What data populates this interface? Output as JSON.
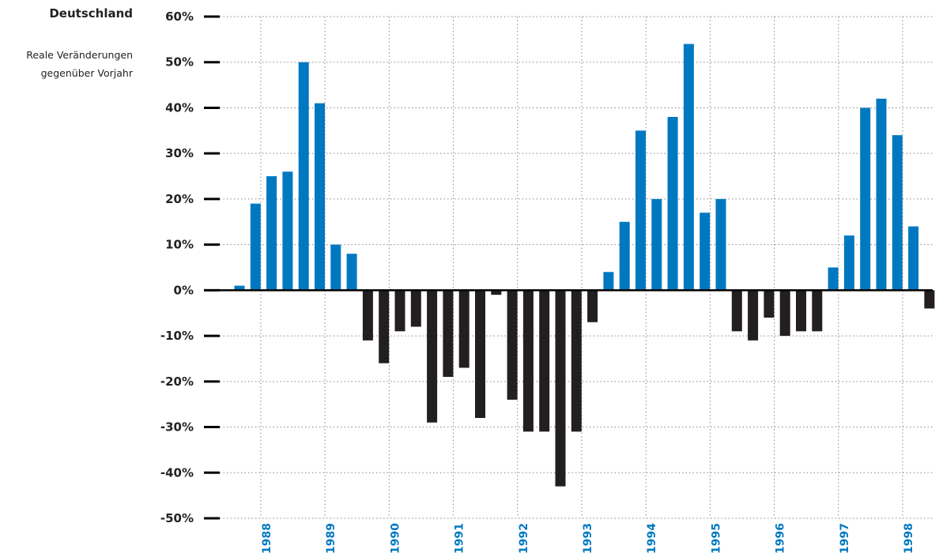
{
  "chart_data": {
    "type": "bar",
    "title": "Deutschland",
    "subtitle": [
      "Reale Veränderungen",
      "gegenüber Vorjahr"
    ],
    "ylabel": "",
    "xlabel": "",
    "ylim": [
      -50,
      60
    ],
    "y_ticks": [
      60,
      50,
      40,
      30,
      20,
      10,
      0,
      -10,
      -20,
      -30,
      -40,
      -50
    ],
    "y_tick_labels": [
      "60%",
      "50%",
      "40%",
      "30%",
      "20%",
      "10%",
      "0%",
      "-10%",
      "-20%",
      "-30%",
      "-40%",
      "-50%"
    ],
    "x_tick_labels": [
      "1988",
      "1989",
      "1990",
      "1991",
      "1992",
      "1993",
      "1994",
      "1995",
      "1996",
      "1997",
      "1998"
    ],
    "grid": true,
    "colors": {
      "positive": "#0078c1",
      "negative": "#231f20",
      "year_label": "#0078c1",
      "axis": "#000000",
      "grid": "#888888"
    },
    "values": [
      1,
      19,
      25,
      26,
      50,
      41,
      10,
      8,
      -11,
      -16,
      -9,
      -8,
      -29,
      -19,
      -17,
      -28,
      -1,
      -24,
      -31,
      -31,
      -43,
      -31,
      -7,
      4,
      15,
      35,
      20,
      38,
      54,
      17,
      20,
      -9,
      -11,
      -6,
      -10,
      -9,
      -9,
      5,
      12,
      40,
      42,
      34,
      14,
      -4
    ]
  }
}
